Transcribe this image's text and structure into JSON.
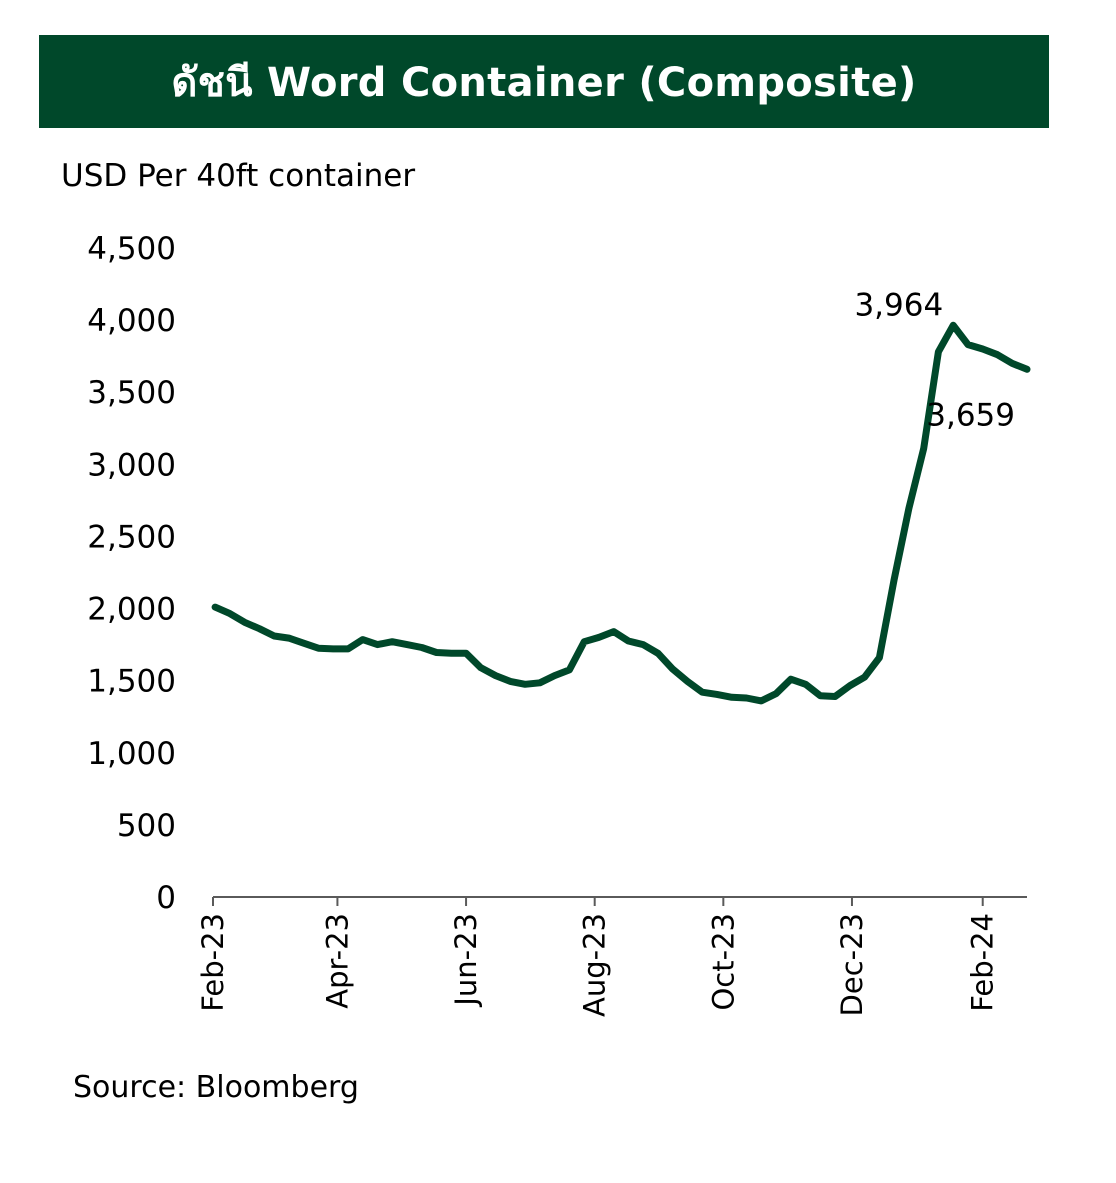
{
  "title": "ดัชนี Word Container (Composite)",
  "unit_label": "USD Per 40ft container",
  "source": "Source: Bloomberg",
  "colors": {
    "banner": "#00482a",
    "line": "#00482a",
    "axis": "#5a5a5a"
  },
  "chart_data": {
    "type": "line",
    "title": "ดัชนี Word Container (Composite)",
    "ylabel": "USD Per 40ft container",
    "ylim": [
      0,
      4500
    ],
    "yticks": [
      0,
      500,
      1000,
      1500,
      2000,
      2500,
      3000,
      3500,
      4000,
      4500
    ],
    "ytick_labels": [
      "0",
      "500",
      "1,000",
      "1,500",
      "2,000",
      "2,500",
      "3,000",
      "3,500",
      "4,000",
      "4,500"
    ],
    "xlim": [
      "2023-02-01",
      "2024-02-22"
    ],
    "xticks": [
      "2023-02-01",
      "2023-04-01",
      "2023-06-01",
      "2023-08-01",
      "2023-10-01",
      "2023-12-01",
      "2024-02-01"
    ],
    "xtick_labels": [
      "Feb-23",
      "Apr-23",
      "Jun-23",
      "Aug-23",
      "Oct-23",
      "Dec-23",
      "Feb-24"
    ],
    "grid": false,
    "series": [
      {
        "x": [
          "2023-02-02",
          "2023-02-09",
          "2023-02-16",
          "2023-02-23",
          "2023-03-02",
          "2023-03-09",
          "2023-03-16",
          "2023-03-23",
          "2023-03-30",
          "2023-04-06",
          "2023-04-13",
          "2023-04-20",
          "2023-04-27",
          "2023-05-04",
          "2023-05-11",
          "2023-05-18",
          "2023-05-25",
          "2023-06-01",
          "2023-06-08",
          "2023-06-15",
          "2023-06-22",
          "2023-06-29",
          "2023-07-06",
          "2023-07-13",
          "2023-07-20",
          "2023-07-27",
          "2023-08-03",
          "2023-08-10",
          "2023-08-17",
          "2023-08-24",
          "2023-08-31",
          "2023-09-07",
          "2023-09-14",
          "2023-09-21",
          "2023-09-28",
          "2023-10-05",
          "2023-10-12",
          "2023-10-19",
          "2023-10-26",
          "2023-11-02",
          "2023-11-09",
          "2023-11-16",
          "2023-11-23",
          "2023-11-30",
          "2023-12-07",
          "2023-12-14",
          "2023-12-21",
          "2023-12-28",
          "2024-01-04",
          "2024-01-11",
          "2024-01-18",
          "2024-01-25",
          "2024-02-01",
          "2024-02-08",
          "2024-02-15",
          "2024-02-22"
        ],
        "values": [
          2010,
          1965,
          1905,
          1860,
          1810,
          1795,
          1760,
          1725,
          1720,
          1720,
          1785,
          1750,
          1770,
          1750,
          1730,
          1695,
          1690,
          1690,
          1590,
          1535,
          1495,
          1475,
          1485,
          1535,
          1575,
          1770,
          1800,
          1840,
          1775,
          1750,
          1690,
          1580,
          1495,
          1420,
          1405,
          1385,
          1380,
          1360,
          1410,
          1510,
          1475,
          1395,
          1390,
          1465,
          1525,
          1660,
          2200,
          2695,
          3110,
          3780,
          3964,
          3830,
          3800,
          3760,
          3700,
          3659
        ]
      }
    ],
    "annotations": [
      {
        "text": "3,964",
        "x": "2024-01-18",
        "y": 3964
      },
      {
        "text": "3,659",
        "x": "2024-02-22",
        "y": 3659
      }
    ]
  }
}
